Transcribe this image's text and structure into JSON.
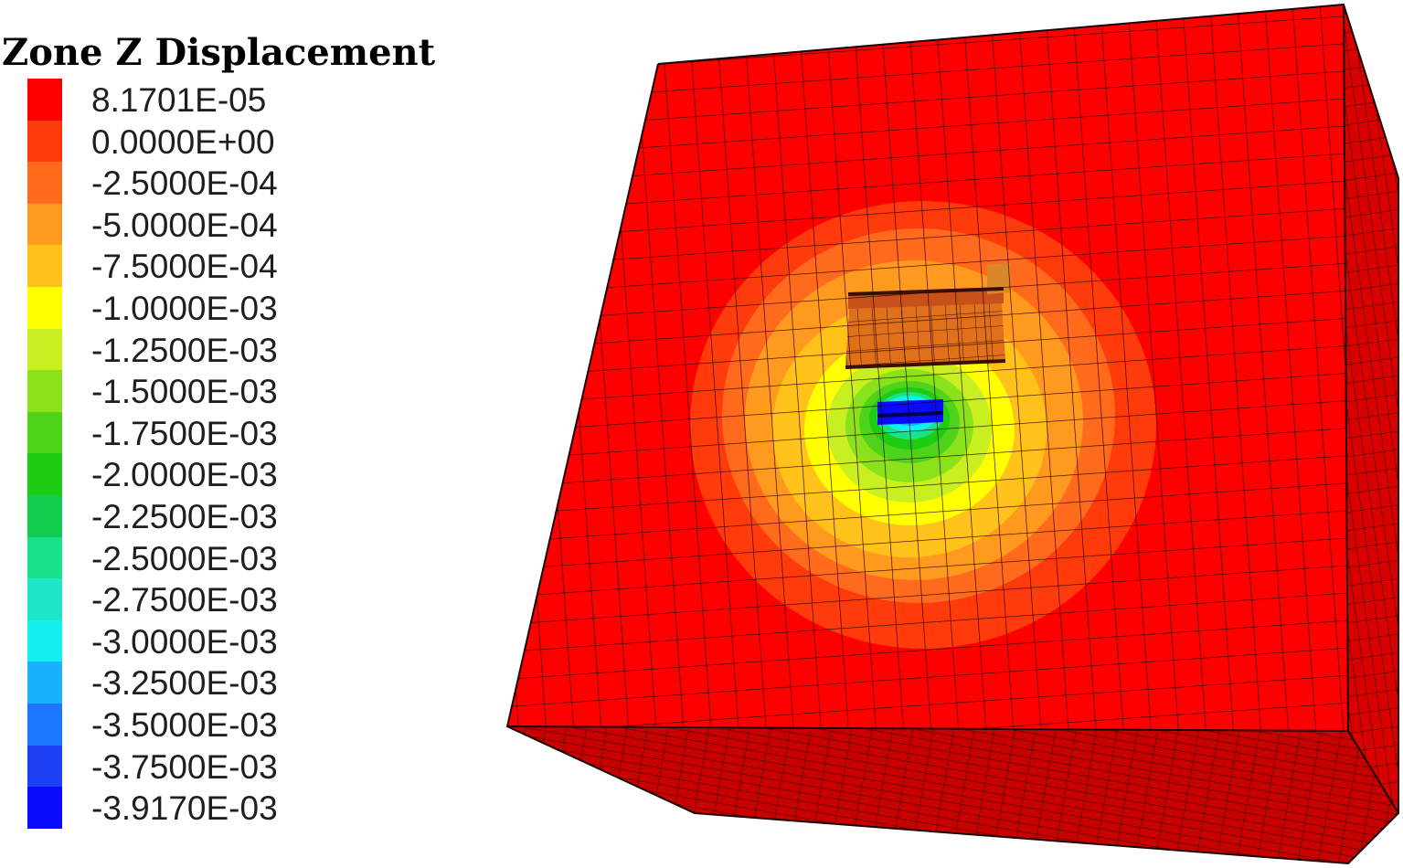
{
  "legend": {
    "title": "Zone Z Displacement",
    "entries": [
      {
        "label": "8.1701E-05",
        "color": "#ff0000"
      },
      {
        "label": "0.0000E+00",
        "color": "#ff3b0c"
      },
      {
        "label": "-2.5000E-04",
        "color": "#ff6a1c"
      },
      {
        "label": "-5.0000E-04",
        "color": "#ff9a1e"
      },
      {
        "label": "-7.5000E-04",
        "color": "#ffc21a"
      },
      {
        "label": "-1.0000E-03",
        "color": "#ffff00"
      },
      {
        "label": "-1.2500E-03",
        "color": "#c8f020"
      },
      {
        "label": "-1.5000E-03",
        "color": "#8ae21a"
      },
      {
        "label": "-1.7500E-03",
        "color": "#4fd21a"
      },
      {
        "label": "-2.0000E-03",
        "color": "#1ecc14"
      },
      {
        "label": "-2.2500E-03",
        "color": "#12cc50"
      },
      {
        "label": "-2.5000E-03",
        "color": "#19e28a"
      },
      {
        "label": "-2.7500E-03",
        "color": "#1ee6c8"
      },
      {
        "label": "-3.0000E-03",
        "color": "#14f0f0"
      },
      {
        "label": "-3.2500E-03",
        "color": "#1ab2ff"
      },
      {
        "label": "-3.5000E-03",
        "color": "#1e78ff"
      },
      {
        "label": "-3.7500E-03",
        "color": "#1e40f5"
      },
      {
        "label": "-3.9170E-03",
        "color": "#0a0aff"
      }
    ]
  }
}
